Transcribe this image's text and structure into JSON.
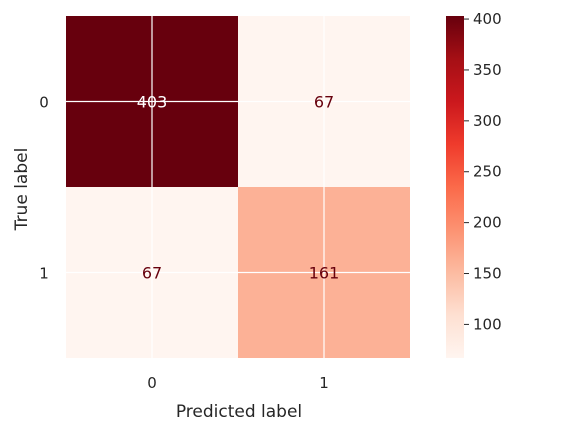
{
  "chart_data": {
    "type": "heatmap",
    "title": "",
    "xlabel": "Predicted label",
    "ylabel": "True label",
    "x_categories": [
      "0",
      "1"
    ],
    "y_categories": [
      "0",
      "1"
    ],
    "values": [
      [
        403,
        67
      ],
      [
        67,
        161
      ]
    ],
    "cell_labels": [
      [
        "403",
        "67"
      ],
      [
        "67",
        "161"
      ]
    ],
    "colormap": "Reds",
    "grid": true,
    "colorbar": {
      "position": "right",
      "range": [
        67,
        403
      ],
      "ticks": [
        100,
        150,
        200,
        250,
        300,
        350,
        400
      ],
      "tick_labels": [
        "100",
        "150",
        "200",
        "250",
        "300",
        "350",
        "400"
      ]
    }
  },
  "colors": {
    "max": "#67000d",
    "mid": "#fb6a4a",
    "min": "#fff5f0",
    "text_dark": "#67000d",
    "text_light": "#ffffff",
    "axis_text": "#262626"
  }
}
